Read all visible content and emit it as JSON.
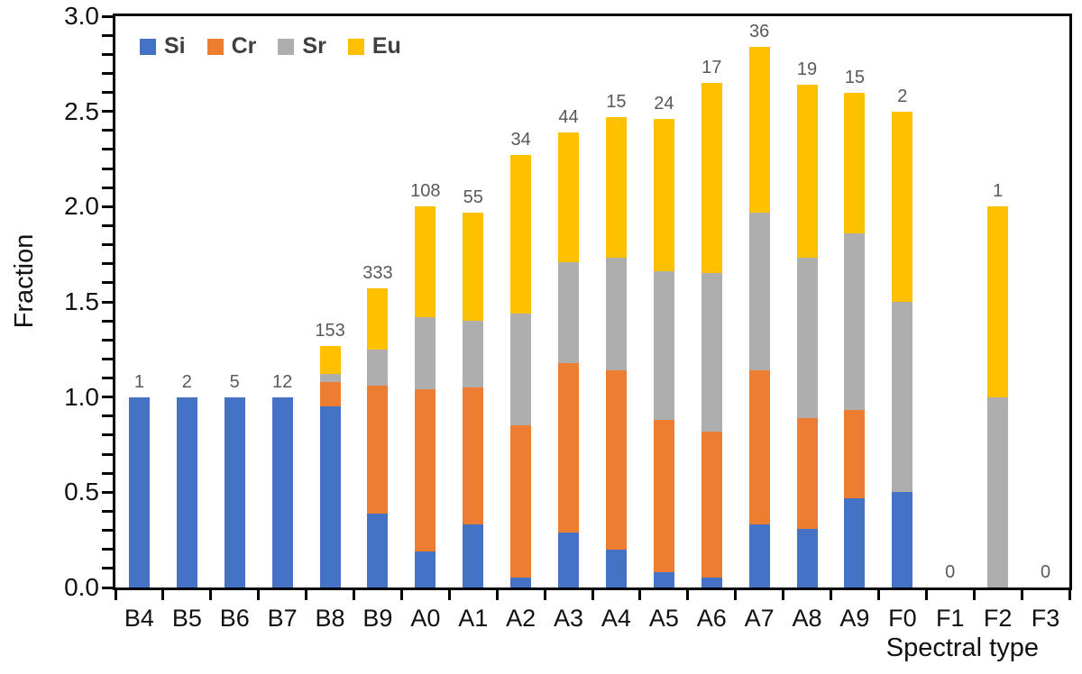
{
  "chart_data": {
    "type": "bar",
    "stacked": true,
    "title": "",
    "xlabel": "Spectral type",
    "ylabel": "Fraction",
    "ylim": [
      0.0,
      3.0
    ],
    "y_major_step": 0.5,
    "y_minor_step": 0.1,
    "grid": false,
    "legend_position": "top-left-inside",
    "categories": [
      "B4",
      "B5",
      "B6",
      "B7",
      "B8",
      "B9",
      "A0",
      "A1",
      "A2",
      "A3",
      "A4",
      "A5",
      "A6",
      "A7",
      "A8",
      "A9",
      "F0",
      "F1",
      "F2",
      "F3"
    ],
    "counts_above_bars": [
      1,
      2,
      5,
      12,
      153,
      333,
      108,
      55,
      34,
      44,
      15,
      24,
      17,
      36,
      19,
      15,
      2,
      0,
      1,
      0
    ],
    "series": [
      {
        "name": "Si",
        "color": "#4472C4",
        "values": [
          1.0,
          1.0,
          1.0,
          1.0,
          0.95,
          0.39,
          0.19,
          0.33,
          0.05,
          0.29,
          0.2,
          0.08,
          0.05,
          0.33,
          0.31,
          0.47,
          0.5,
          0,
          0,
          0
        ]
      },
      {
        "name": "Cr",
        "color": "#ED7D31",
        "values": [
          0,
          0,
          0,
          0,
          0.13,
          0.67,
          0.85,
          0.72,
          0.8,
          0.89,
          0.94,
          0.8,
          0.77,
          0.81,
          0.58,
          0.46,
          0,
          0,
          0,
          0
        ]
      },
      {
        "name": "Sr",
        "color": "#AEAEAE",
        "values": [
          0,
          0,
          0,
          0,
          0.04,
          0.19,
          0.38,
          0.35,
          0.59,
          0.53,
          0.59,
          0.78,
          0.83,
          0.83,
          0.84,
          0.93,
          1.0,
          0,
          1.0,
          0
        ]
      },
      {
        "name": "Eu",
        "color": "#FFC000",
        "values": [
          0,
          0,
          0,
          0,
          0.15,
          0.32,
          0.58,
          0.57,
          0.83,
          0.68,
          0.74,
          0.8,
          1.0,
          0.87,
          0.91,
          0.74,
          1.0,
          0,
          1.0,
          0
        ]
      }
    ],
    "totals": [
      1.0,
      1.0,
      1.0,
      1.0,
      1.27,
      1.57,
      2.0,
      1.97,
      2.27,
      2.39,
      2.47,
      2.46,
      2.65,
      2.84,
      2.64,
      2.6,
      2.5,
      0,
      2.0,
      0
    ]
  },
  "style": {
    "count_label_color": "#595959",
    "axis_color": "#000000",
    "legend_text_color": "#3f3f3f",
    "background": "#ffffff"
  }
}
